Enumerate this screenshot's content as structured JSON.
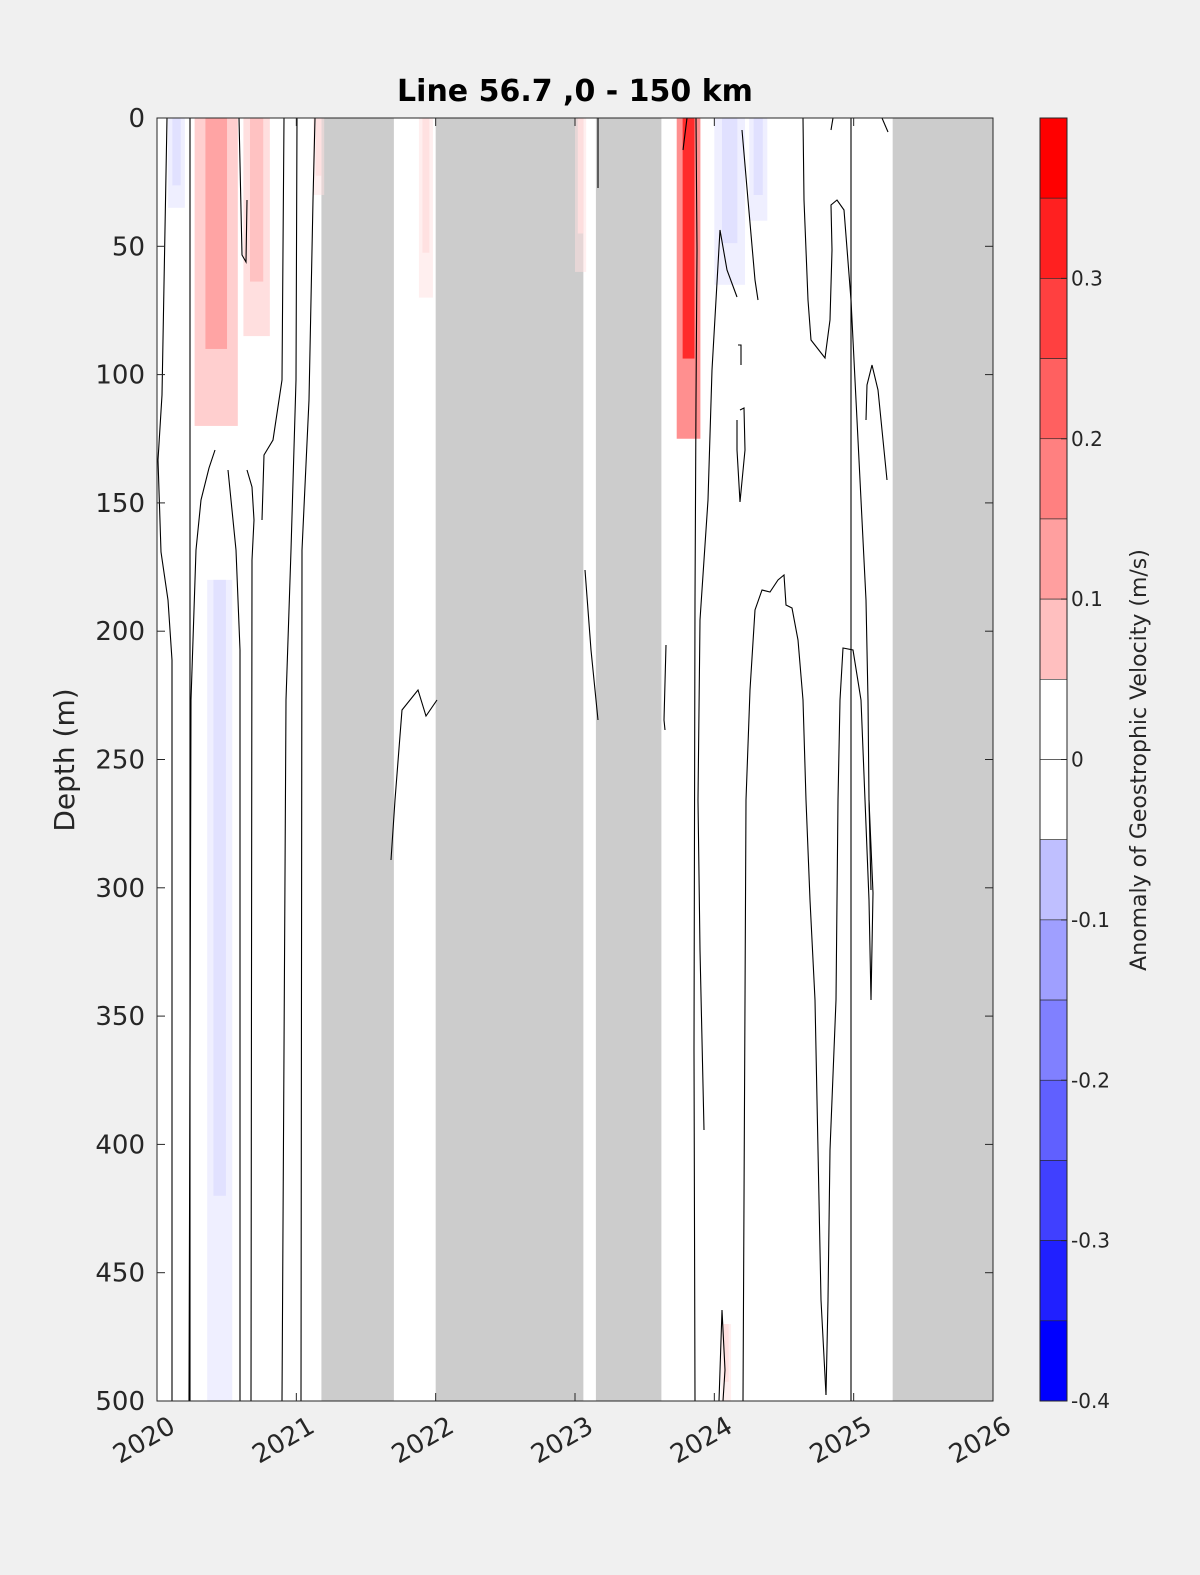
{
  "chart_data": {
    "type": "heatmap",
    "title": "Line 56.7 ,0 - 150 km",
    "ylabel": "Depth (m)",
    "xlabel": "",
    "x_ticks": [
      "2020",
      "2021",
      "2022",
      "2023",
      "2024",
      "2025",
      "2026"
    ],
    "xlim": [
      2020.0,
      2026.0
    ],
    "y_ticks": [
      0,
      50,
      100,
      150,
      200,
      250,
      300,
      350,
      400,
      450,
      500
    ],
    "ylim": [
      0,
      500
    ],
    "y_reversed": true,
    "colorbar": {
      "label": "Anomaly of Geostrophic Velocity (m/s)",
      "ticks": [
        0.3,
        0.2,
        0.1,
        0,
        -0.1,
        -0.2,
        -0.3,
        -0.4
      ],
      "tick_labels": [
        "0.3",
        "0.2",
        "0.1",
        "0",
        "-0.1",
        "-0.2",
        "-0.3",
        "-0.4"
      ],
      "range": [
        -0.4,
        0.4
      ],
      "step": 0.05,
      "colormap": "blue-white-red"
    },
    "no_data_periods": [
      [
        2021.18,
        2021.7
      ],
      [
        2022.0,
        2023.06
      ],
      [
        2023.15,
        2023.62
      ],
      [
        2025.28,
        2026.0
      ]
    ],
    "anomalies": [
      {
        "time_start": 2020.08,
        "time_end": 2020.2,
        "depth_start": 0,
        "depth_end": 35,
        "value": -0.05
      },
      {
        "time_start": 2020.27,
        "time_end": 2020.58,
        "depth_start": 0,
        "depth_end": 120,
        "value": 0.15
      },
      {
        "time_start": 2020.62,
        "time_end": 2020.81,
        "depth_start": 0,
        "depth_end": 85,
        "value": 0.1
      },
      {
        "time_start": 2020.36,
        "time_end": 2020.54,
        "depth_start": 180,
        "depth_end": 500,
        "value": -0.05
      },
      {
        "time_start": 2021.12,
        "time_end": 2021.2,
        "depth_start": 0,
        "depth_end": 30,
        "value": 0.05
      },
      {
        "time_start": 2021.88,
        "time_end": 2021.98,
        "depth_start": 0,
        "depth_end": 70,
        "value": 0.05
      },
      {
        "time_start": 2023.0,
        "time_end": 2023.08,
        "depth_start": 0,
        "depth_end": 60,
        "value": 0.05
      },
      {
        "time_start": 2023.73,
        "time_end": 2023.9,
        "depth_start": 0,
        "depth_end": 125,
        "value": 0.35
      },
      {
        "time_start": 2024.0,
        "time_end": 2024.22,
        "depth_start": 0,
        "depth_end": 65,
        "value": -0.05
      },
      {
        "time_start": 2024.25,
        "time_end": 2024.38,
        "depth_start": 0,
        "depth_end": 40,
        "value": -0.05
      },
      {
        "time_start": 2024.05,
        "time_end": 2024.12,
        "depth_start": 470,
        "depth_end": 500,
        "value": 0.05
      }
    ]
  }
}
